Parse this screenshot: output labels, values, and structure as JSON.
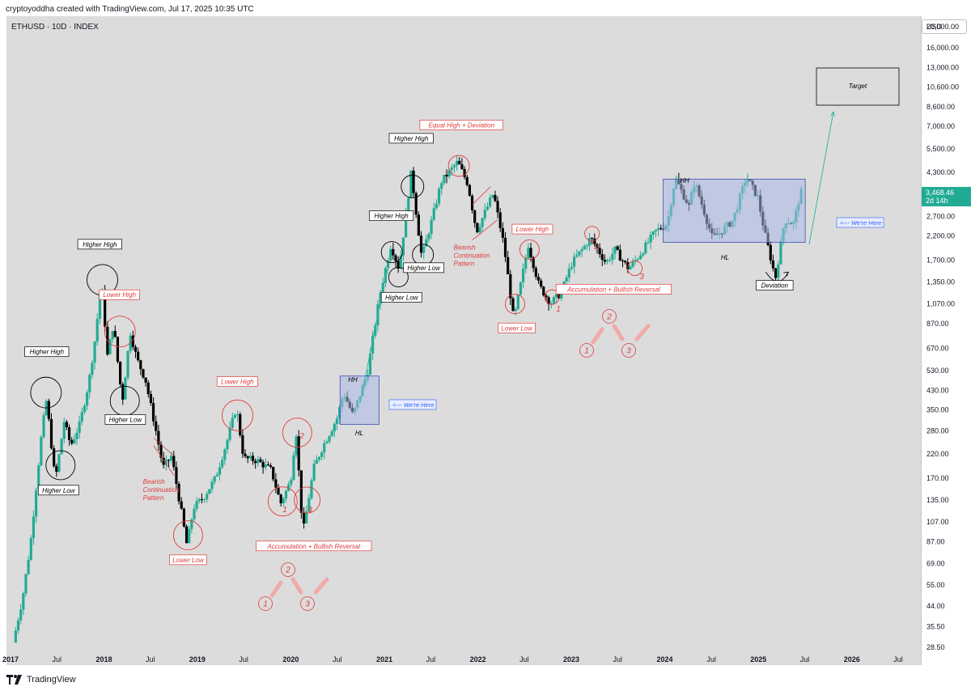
{
  "header": {
    "credit": "cryptoyoddha created with TradingView.com, Jul 17, 2025 10:35 UTC",
    "symbol": "ETHUSD · 10D · INDEX",
    "currency": "USD",
    "brand": "TradingView"
  },
  "colors": {
    "up": "#22ab94",
    "down": "#000000",
    "pane": "#dcdcdc",
    "annot_red": "#e03c3c",
    "annot_black": "#000000",
    "box_fill": "#aab8e8",
    "price_tag": "#22ab94",
    "arrow_green": "#2bb29b"
  },
  "chart_data": {
    "type": "candlestick",
    "scale": "log",
    "ylim": [
      28.5,
      24000
    ],
    "y_ticks": [
      "20,000.00",
      "16,000.00",
      "13,000.00",
      "10,600.00",
      "8,600.00",
      "7,000.00",
      "5,500.00",
      "4,300.00",
      "3,468.46",
      "2,700.00",
      "2,200.00",
      "1,700.00",
      "1,350.00",
      "1,070.00",
      "870.00",
      "670.00",
      "530.00",
      "430.00",
      "350.00",
      "280.00",
      "220.00",
      "170.00",
      "135.00",
      "107.00",
      "87.00",
      "69.00",
      "55.00",
      "44.00",
      "35.50",
      "28.50"
    ],
    "x_ticks": [
      "2017",
      "Jul",
      "2018",
      "Jul",
      "2019",
      "Jul",
      "2020",
      "Jul",
      "2021",
      "Jul",
      "2022",
      "Jul",
      "2023",
      "Jul",
      "2024",
      "Jul",
      "2025",
      "Jul",
      "2026",
      "Jul"
    ],
    "last_price": "3,468.46",
    "countdown": "2d 14h",
    "path": [
      [
        "2017-02-01",
        30
      ],
      [
        "2017-03-10",
        48
      ],
      [
        "2017-04-10",
        85
      ],
      [
        "2017-05-01",
        150
      ],
      [
        "2017-05-25",
        280
      ],
      [
        "2017-06-12",
        390
      ],
      [
        "2017-07-16",
        165
      ],
      [
        "2017-08-20",
        310
      ],
      [
        "2017-09-15",
        240
      ],
      [
        "2017-10-20",
        300
      ],
      [
        "2017-11-25",
        470
      ],
      [
        "2017-12-20",
        750
      ],
      [
        "2018-01-13",
        1380
      ],
      [
        "2018-02-06",
        620
      ],
      [
        "2018-03-01",
        870
      ],
      [
        "2018-04-05",
        380
      ],
      [
        "2018-05-06",
        800
      ],
      [
        "2018-06-01",
        600
      ],
      [
        "2018-07-05",
        480
      ],
      [
        "2018-08-15",
        280
      ],
      [
        "2018-09-12",
        190
      ],
      [
        "2018-10-15",
        215
      ],
      [
        "2018-11-25",
        115
      ],
      [
        "2018-12-14",
        84
      ],
      [
        "2019-01-10",
        125
      ],
      [
        "2019-02-20",
        140
      ],
      [
        "2019-04-05",
        170
      ],
      [
        "2019-05-20",
        250
      ],
      [
        "2019-06-26",
        360
      ],
      [
        "2019-07-25",
        210
      ],
      [
        "2019-09-15",
        205
      ],
      [
        "2019-11-10",
        185
      ],
      [
        "2019-12-17",
        130
      ],
      [
        "2020-01-25",
        165
      ],
      [
        "2020-02-15",
        285
      ],
      [
        "2020-03-13",
        95
      ],
      [
        "2020-04-25",
        190
      ],
      [
        "2020-06-01",
        240
      ],
      [
        "2020-07-25",
        320
      ],
      [
        "2020-08-20",
        420
      ],
      [
        "2020-09-25",
        330
      ],
      [
        "2020-11-20",
        510
      ],
      [
        "2021-01-10",
        1200
      ],
      [
        "2021-02-21",
        2000
      ],
      [
        "2021-03-25",
        1550
      ],
      [
        "2021-05-12",
        4300
      ],
      [
        "2021-06-22",
        1750
      ],
      [
        "2021-08-01",
        2600
      ],
      [
        "2021-09-07",
        3900
      ],
      [
        "2021-11-10",
        4800
      ],
      [
        "2021-12-20",
        3800
      ],
      [
        "2022-01-23",
        2300
      ],
      [
        "2022-03-30",
        3450
      ],
      [
        "2022-05-10",
        2000
      ],
      [
        "2022-06-18",
        900
      ],
      [
        "2022-08-14",
        2000
      ],
      [
        "2022-09-25",
        1300
      ],
      [
        "2022-11-09",
        1080
      ],
      [
        "2022-12-20",
        1200
      ],
      [
        "2023-02-01",
        1650
      ],
      [
        "2023-04-16",
        2150
      ],
      [
        "2023-06-15",
        1650
      ],
      [
        "2023-07-20",
        1900
      ],
      [
        "2023-09-11",
        1550
      ],
      [
        "2023-10-25",
        1800
      ],
      [
        "2023-12-25",
        2300
      ],
      [
        "2024-02-10",
        2500
      ],
      [
        "2024-03-12",
        4050
      ],
      [
        "2024-05-05",
        3000
      ],
      [
        "2024-05-27",
        3900
      ],
      [
        "2024-08-05",
        2150
      ],
      [
        "2024-09-10",
        2300
      ],
      [
        "2024-10-25",
        2600
      ],
      [
        "2024-12-16",
        4100
      ],
      [
        "2025-01-30",
        3300
      ],
      [
        "2025-02-25",
        2300
      ],
      [
        "2025-04-09",
        1400
      ],
      [
        "2025-05-15",
        2600
      ],
      [
        "2025-06-20",
        2500
      ],
      [
        "2025-07-16",
        3468
      ]
    ],
    "annotations": {
      "black_labels": [
        {
          "text": "Higher High",
          "d": "2017-06-08",
          "p": 630
        },
        {
          "text": "Higher Low",
          "d": "2017-07-24",
          "p": 146
        },
        {
          "text": "Higher High",
          "d": "2018-01-02",
          "p": 1960
        },
        {
          "text": "Higher Low",
          "d": "2018-04-12",
          "p": 308
        },
        {
          "text": "Higher High",
          "d": "2021-02-18",
          "p": 2650
        },
        {
          "text": "Higher Low",
          "d": "2021-03-30",
          "p": 1120
        },
        {
          "text": "Higher High",
          "d": "2021-05-07",
          "p": 6000
        },
        {
          "text": "Higher Low",
          "d": "2021-06-25",
          "p": 1530
        },
        {
          "text": "Deviation",
          "d": "2025-04-01",
          "p": 1270
        }
      ],
      "red_labels": [
        {
          "text": "Lower High",
          "d": "2018-03-20",
          "p": 1150
        },
        {
          "text": "Lower High",
          "d": "2019-06-25",
          "p": 460
        },
        {
          "text": "Lower Low",
          "d": "2018-12-14",
          "p": 70
        },
        {
          "text": "Equal High + Deviation",
          "d": "2021-11-20",
          "p": 6900
        },
        {
          "text": "Lower High",
          "d": "2022-08-25",
          "p": 2300
        },
        {
          "text": "Lower Low",
          "d": "2022-06-25",
          "p": 810
        }
      ],
      "red_multiline": [
        {
          "lines": [
            "Bearish",
            "Continuation",
            "Pattern"
          ],
          "d": "2018-09-20",
          "p": 160
        },
        {
          "lines": [
            "Bearish",
            "Continuation",
            "Pattern"
          ],
          "d": "2022-01-20",
          "p": 1900
        }
      ],
      "accumulation": [
        {
          "text": "Accumulation + Bullish Reversal",
          "d": "2020-04-20",
          "p": 81
        },
        {
          "text": "Accumulation + Bullish Reversal",
          "d": "2023-07-10",
          "p": 1220
        }
      ],
      "heads_up": [
        {
          "text": "<--- We're Here"
        },
        {
          "text": "<--- We're Here"
        }
      ],
      "small_labels": [
        "HH",
        "HL",
        "HH",
        "HL"
      ],
      "digits": [
        "1",
        "2",
        "3"
      ],
      "target": "Target"
    }
  }
}
